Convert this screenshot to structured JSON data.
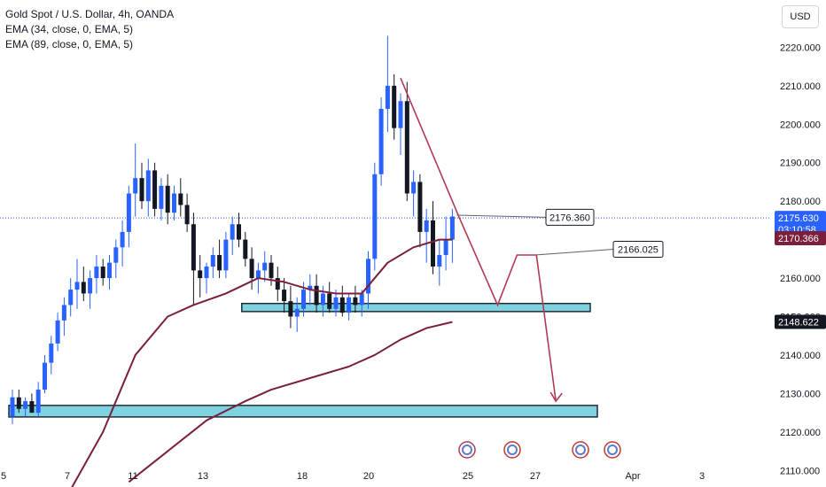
{
  "legend": {
    "title": "Gold Spot / U.S. Dollar, 4h, OANDA",
    "ema1": "EMA (34, close, 0, EMA, 5)",
    "ema2": "EMA (89, close, 0, EMA, 5)"
  },
  "currency_button": "USD",
  "price_badges": {
    "last_price": "2175.630",
    "countdown": "03:10:58",
    "ema34": "2170.366",
    "ema89": "2148.622"
  },
  "colors": {
    "up": "#2962ff",
    "down": "#131722",
    "ema": "#7b1f3a",
    "zone_fill": "#7fd3e0",
    "zone_border": "#1f2d33",
    "arrow": "#b03a55",
    "price_line": "#2962ff",
    "badge_blue": "#2962ff",
    "badge_maroon": "#7b1f3a",
    "badge_dark": "#131722"
  },
  "chart_data": {
    "type": "candlestick",
    "symbol": "Gold Spot / U.S. Dollar",
    "timeframe": "4h",
    "ylim": [
      2105,
      2227
    ],
    "y_ticks": [
      2110,
      2120,
      2130,
      2140,
      2150,
      2160,
      2170,
      2180,
      2190,
      2200,
      2210,
      2220
    ],
    "y_tick_labels": [
      "2110.000",
      "2120.000",
      "2130.000",
      "2140.000",
      "2150.000",
      "2160.000",
      "2170.000",
      "2180.000",
      "2190.000",
      "2200.000",
      "2210.000",
      "2220.000"
    ],
    "x_tick_labels": [
      "5",
      "7",
      "11",
      "13",
      "18",
      "20",
      "25",
      "27",
      "Apr",
      "3"
    ],
    "candles_ohlc": [
      [
        2124,
        2131,
        2122,
        2129
      ],
      [
        2129,
        2131,
        2125,
        2126
      ],
      [
        2126,
        2129,
        2124,
        2128
      ],
      [
        2128,
        2130,
        2125,
        2125
      ],
      [
        2125,
        2133,
        2124,
        2131
      ],
      [
        2131,
        2140,
        2130,
        2138
      ],
      [
        2138,
        2145,
        2135,
        2143
      ],
      [
        2143,
        2151,
        2141,
        2149
      ],
      [
        2149,
        2155,
        2145,
        2153
      ],
      [
        2153,
        2160,
        2150,
        2157
      ],
      [
        2157,
        2165,
        2152,
        2159
      ],
      [
        2159,
        2163,
        2154,
        2156
      ],
      [
        2156,
        2162,
        2152,
        2160
      ],
      [
        2160,
        2166,
        2156,
        2163
      ],
      [
        2163,
        2165,
        2158,
        2160
      ],
      [
        2160,
        2166,
        2157,
        2164
      ],
      [
        2164,
        2170,
        2160,
        2168
      ],
      [
        2168,
        2175,
        2163,
        2172
      ],
      [
        2172,
        2184,
        2168,
        2182
      ],
      [
        2182,
        2195,
        2176,
        2186
      ],
      [
        2186,
        2190,
        2178,
        2180
      ],
      [
        2180,
        2191,
        2176,
        2188
      ],
      [
        2188,
        2190,
        2176,
        2178
      ],
      [
        2178,
        2186,
        2175,
        2184
      ],
      [
        2184,
        2187,
        2174,
        2177
      ],
      [
        2177,
        2184,
        2175,
        2182
      ],
      [
        2182,
        2186,
        2176,
        2179
      ],
      [
        2179,
        2182,
        2172,
        2174
      ],
      [
        2174,
        2177,
        2153,
        2162
      ],
      [
        2162,
        2166,
        2155,
        2160
      ],
      [
        2160,
        2164,
        2156,
        2163
      ],
      [
        2163,
        2168,
        2160,
        2166
      ],
      [
        2166,
        2170,
        2160,
        2162
      ],
      [
        2162,
        2172,
        2160,
        2170
      ],
      [
        2170,
        2176,
        2166,
        2174
      ],
      [
        2174,
        2177,
        2168,
        2170
      ],
      [
        2170,
        2172,
        2163,
        2165
      ],
      [
        2165,
        2168,
        2157,
        2160
      ],
      [
        2160,
        2164,
        2156,
        2162
      ],
      [
        2162,
        2167,
        2159,
        2164
      ],
      [
        2164,
        2166,
        2158,
        2160
      ],
      [
        2160,
        2163,
        2154,
        2157
      ],
      [
        2157,
        2160,
        2151,
        2154
      ],
      [
        2154,
        2158,
        2147,
        2150
      ],
      [
        2150,
        2155,
        2146,
        2152
      ],
      [
        2152,
        2159,
        2150,
        2157
      ],
      [
        2157,
        2161,
        2153,
        2158
      ],
      [
        2158,
        2161,
        2151,
        2153
      ],
      [
        2153,
        2158,
        2150,
        2156
      ],
      [
        2156,
        2159,
        2151,
        2152
      ],
      [
        2152,
        2157,
        2150,
        2155
      ],
      [
        2155,
        2158,
        2150,
        2151
      ],
      [
        2151,
        2156,
        2149,
        2155
      ],
      [
        2155,
        2158,
        2151,
        2153
      ],
      [
        2153,
        2157,
        2150,
        2156
      ],
      [
        2156,
        2167,
        2152,
        2165
      ],
      [
        2165,
        2190,
        2162,
        2187
      ],
      [
        2187,
        2207,
        2184,
        2204
      ],
      [
        2204,
        2223,
        2198,
        2210
      ],
      [
        2210,
        2213,
        2196,
        2199
      ],
      [
        2199,
        2208,
        2192,
        2206
      ],
      [
        2206,
        2211,
        2180,
        2182
      ],
      [
        2182,
        2188,
        2176,
        2185
      ],
      [
        2185,
        2187,
        2168,
        2172
      ],
      [
        2172,
        2178,
        2164,
        2175
      ],
      [
        2175,
        2180,
        2161,
        2163
      ],
      [
        2163,
        2170,
        2158,
        2166
      ],
      [
        2166,
        2176,
        2162,
        2170
      ],
      [
        2170,
        2178,
        2164,
        2176
      ]
    ],
    "series": [
      {
        "name": "EMA (34, close, 0, EMA, 5)",
        "x": [
          9,
          14,
          19,
          24,
          28,
          33,
          38,
          42,
          46,
          50,
          54,
          58,
          62,
          66,
          68
        ],
        "y": [
          2105,
          2120,
          2140,
          2150,
          2153,
          2156,
          2160,
          2159,
          2157,
          2156,
          2156,
          2164,
          2168,
          2170,
          2170
        ]
      },
      {
        "name": "EMA (89, close, 0, EMA, 5)",
        "x": [
          18,
          24,
          30,
          36,
          40,
          46,
          52,
          56,
          60,
          64,
          68
        ],
        "y": [
          2107,
          2115,
          2123,
          2128,
          2131,
          2134,
          2137,
          2140,
          2144,
          2147,
          2148.6
        ]
      }
    ],
    "zones": [
      {
        "y_low": 2151.3,
        "y_high": 2153.4,
        "x_from": 36,
        "x_to": 90
      },
      {
        "y_low": 2123.9,
        "y_high": 2126.9,
        "x_from": 0,
        "x_to": 90
      }
    ],
    "annotations": [
      {
        "text": "2176.360",
        "anchor_price": 2176.36
      },
      {
        "text": "2166.025",
        "anchor_price": 2166.025
      }
    ],
    "projected_path": {
      "x": [
        60,
        69,
        75,
        78,
        81,
        84
      ],
      "y": [
        2212,
        2176,
        2153,
        2166,
        2166,
        2128
      ]
    },
    "last_price": 2175.63,
    "price_line": 2175.63
  }
}
